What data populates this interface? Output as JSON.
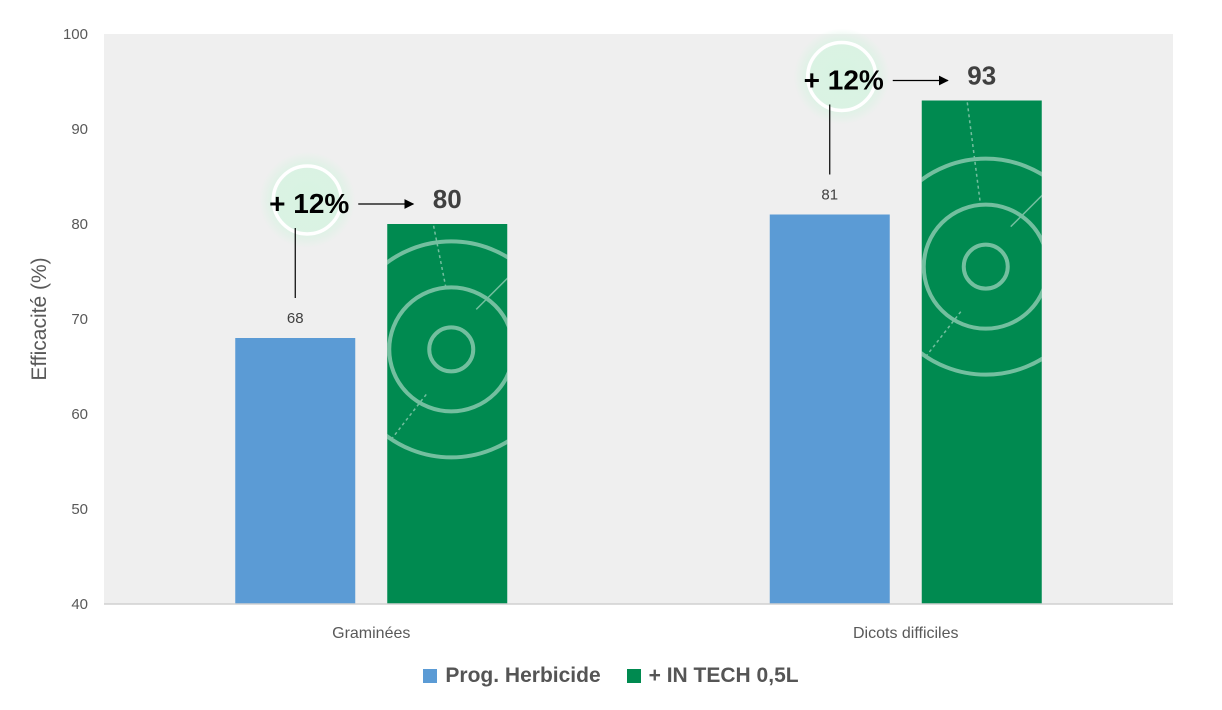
{
  "chart_data": {
    "type": "bar",
    "ylabel": "Efficacité (%)",
    "ylim": [
      40,
      100
    ],
    "yticks": [
      40,
      50,
      60,
      70,
      80,
      90,
      100
    ],
    "categories": [
      "Graminées",
      "Dicots difficiles"
    ],
    "series": [
      {
        "name": "Prog. Herbicide",
        "values": [
          68,
          81
        ],
        "color": "#5b9bd5"
      },
      {
        "name": "+ IN TECH 0,5L",
        "values": [
          80,
          93
        ],
        "color": "#008a50"
      }
    ],
    "data_labels": {
      "series0": [
        "68",
        "81"
      ],
      "series1": [
        "80",
        "93"
      ]
    },
    "annotations": [
      "+ 12%",
      "+ 12%"
    ],
    "plot_background": "#efefef",
    "legend_position": "bottom"
  }
}
